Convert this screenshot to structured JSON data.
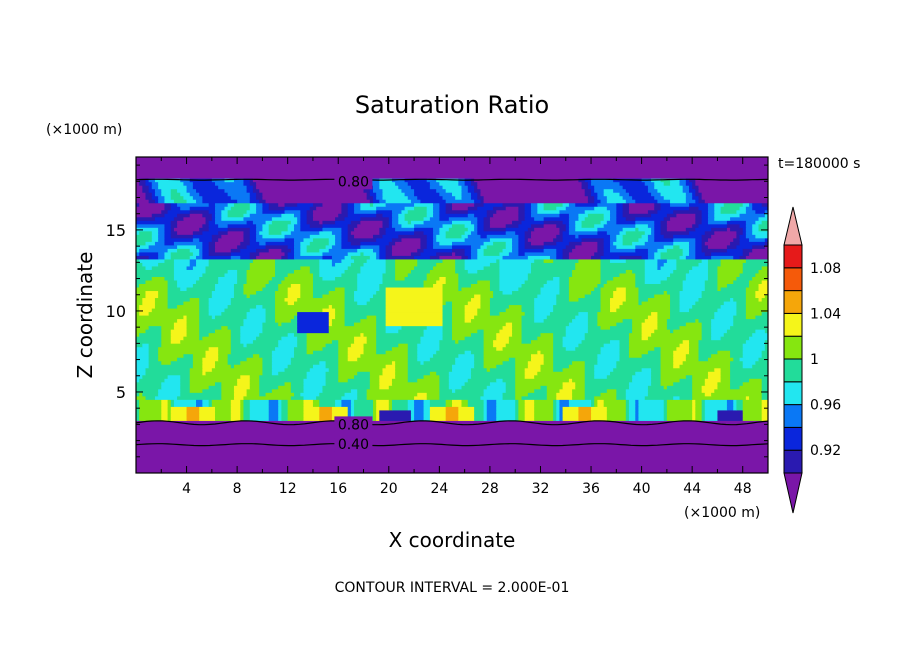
{
  "chart_data": {
    "type": "heatmap",
    "title": "Saturation Ratio",
    "time_label": "t=180000 s",
    "xlabel": "X coordinate",
    "ylabel": "Z coordinate",
    "x_unit": "(×1000 m)",
    "y_unit": "(×1000 m)",
    "xlim": [
      0,
      50
    ],
    "ylim": [
      0,
      19.5
    ],
    "x_ticks": [
      "4",
      "8",
      "12",
      "16",
      "20",
      "24",
      "28",
      "32",
      "36",
      "40",
      "44",
      "48"
    ],
    "y_ticks": [
      "5",
      "10",
      "15"
    ],
    "footer": "CONTOUR INTERVAL = 2.000E-01",
    "colorbar": {
      "levels": [
        0.9,
        0.92,
        0.94,
        0.96,
        0.98,
        1.0,
        1.02,
        1.04,
        1.06,
        1.08,
        1.1
      ],
      "labels": [
        "0.92",
        "0.96",
        "1",
        "1.04",
        "1.08"
      ],
      "colors": [
        "#7a16a8",
        "#2a1ab0",
        "#0a26dc",
        "#0a78f5",
        "#22e6f0",
        "#22dc9a",
        "#86e610",
        "#f5f51a",
        "#f5a60a",
        "#f55a0a",
        "#e61a1a",
        "#f0a8a8"
      ]
    },
    "contour_labels": [
      {
        "text": "0.80",
        "x": 17.2,
        "z": 18.0
      },
      {
        "text": "0.80",
        "x": 17.2,
        "z": 3.0
      },
      {
        "text": "0.40",
        "x": 17.2,
        "z": 1.8
      }
    ]
  }
}
